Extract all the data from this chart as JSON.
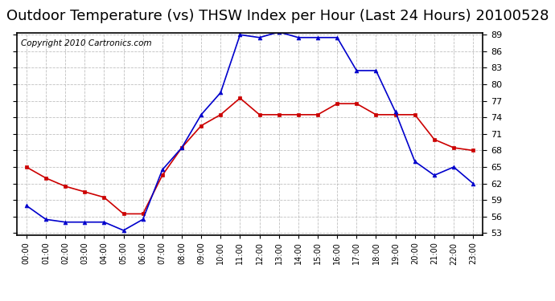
{
  "title": "Outdoor Temperature (vs) THSW Index per Hour (Last 24 Hours) 20100528",
  "copyright": "Copyright 2010 Cartronics.com",
  "x_labels": [
    "00:00",
    "01:00",
    "02:00",
    "03:00",
    "04:00",
    "05:00",
    "06:00",
    "07:00",
    "08:00",
    "09:00",
    "10:00",
    "11:00",
    "12:00",
    "13:00",
    "14:00",
    "15:00",
    "16:00",
    "17:00",
    "18:00",
    "19:00",
    "20:00",
    "21:00",
    "22:00",
    "23:00"
  ],
  "temp_red": [
    65.0,
    63.0,
    61.5,
    60.5,
    59.5,
    56.5,
    56.5,
    63.5,
    68.5,
    72.5,
    74.5,
    77.5,
    74.5,
    74.5,
    74.5,
    74.5,
    76.5,
    76.5,
    74.5,
    74.5,
    74.5,
    70.0,
    68.5,
    68.0
  ],
  "thsw_blue": [
    58.0,
    55.5,
    55.0,
    55.0,
    55.0,
    53.5,
    55.5,
    64.5,
    68.5,
    74.5,
    78.5,
    89.0,
    88.5,
    89.5,
    88.5,
    88.5,
    88.5,
    82.5,
    82.5,
    75.0,
    66.0,
    63.5,
    65.0,
    62.0
  ],
  "ylim_min": 53.0,
  "ylim_max": 89.0,
  "yticks": [
    53.0,
    56.0,
    59.0,
    62.0,
    65.0,
    68.0,
    71.0,
    74.0,
    77.0,
    80.0,
    83.0,
    86.0,
    89.0
  ],
  "bg_color": "#ffffff",
  "grid_color": "#b0b0b0",
  "line_color_red": "#cc0000",
  "line_color_blue": "#0000cc",
  "marker_red": "s",
  "marker_blue": "^",
  "title_fontsize": 13,
  "copyright_fontsize": 7.5,
  "tick_fontsize": 8,
  "xlabel_fontsize": 7
}
